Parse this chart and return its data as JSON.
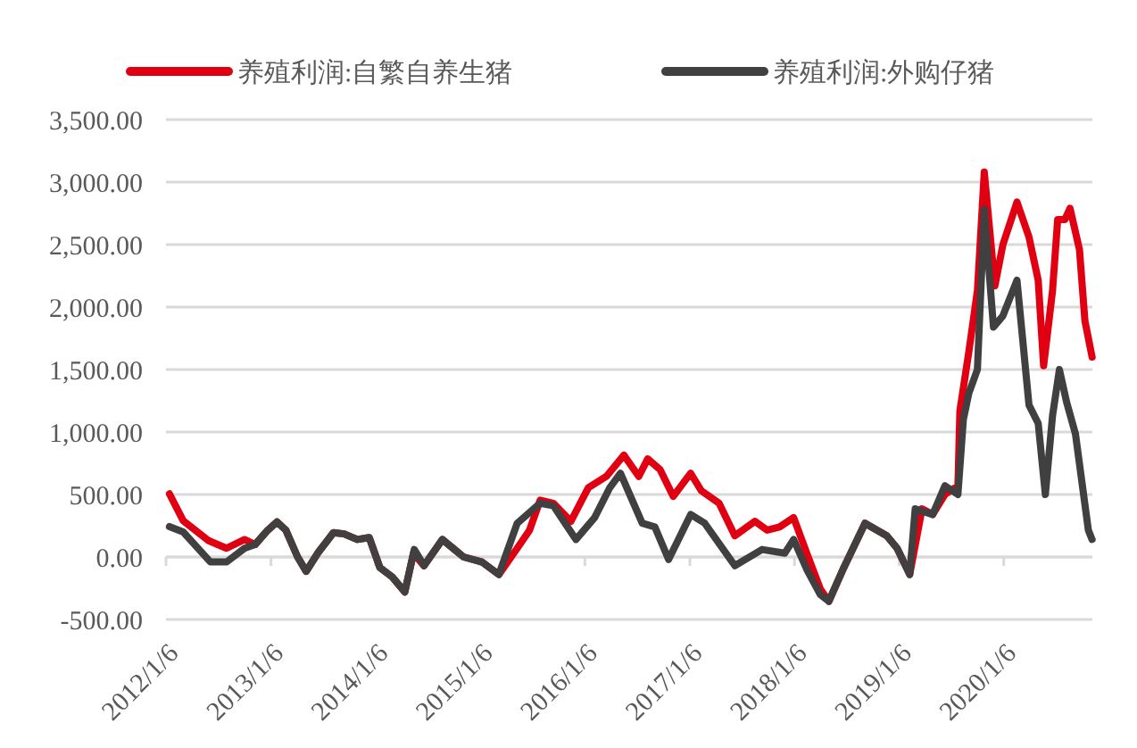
{
  "chart_data": {
    "type": "line",
    "xlim": [
      "2012-01-06",
      "2020-11-10"
    ],
    "xticks": [
      {
        "value": "2012-01-06",
        "label": "2012/1/6"
      },
      {
        "value": "2013-01-06",
        "label": "2013/1/6"
      },
      {
        "value": "2014-01-06",
        "label": "2014/1/6"
      },
      {
        "value": "2015-01-06",
        "label": "2015/1/6"
      },
      {
        "value": "2016-01-06",
        "label": "2016/1/6"
      },
      {
        "value": "2017-01-06",
        "label": "2017/1/6"
      },
      {
        "value": "2018-01-06",
        "label": "2018/1/6"
      },
      {
        "value": "2019-01-06",
        "label": "2019/1/6"
      },
      {
        "value": "2020-01-06",
        "label": "2020/1/6"
      }
    ],
    "ylim": [
      -500,
      3500
    ],
    "yticks": [
      {
        "value": -500,
        "label": "-500.00"
      },
      {
        "value": 0,
        "label": "0.00"
      },
      {
        "value": 500,
        "label": "500.00"
      },
      {
        "value": 1000,
        "label": "1,000.00"
      },
      {
        "value": 1500,
        "label": "1,500.00"
      },
      {
        "value": 2000,
        "label": "2,000.00"
      },
      {
        "value": 2500,
        "label": "2,500.00"
      },
      {
        "value": 3000,
        "label": "3,000.00"
      },
      {
        "value": 3500,
        "label": "3,500.00"
      }
    ],
    "grid": "y",
    "legend": "top",
    "series": [
      {
        "name": "养殖利润:自繁自养生猪",
        "color": "#e00012",
        "x": [
          "2012-01-18",
          "2012-03-06",
          "2012-06-03",
          "2012-08-04",
          "2012-10-06",
          "2012-11-12",
          "2012-12-26",
          "2013-01-27",
          "2013-02-27",
          "2013-04-09",
          "2013-05-09",
          "2013-06-18",
          "2013-08-12",
          "2013-09-18",
          "2013-11-03",
          "2013-12-15",
          "2014-01-21",
          "2014-03-05",
          "2014-04-18",
          "2014-05-18",
          "2014-06-24",
          "2014-08-27",
          "2014-11-09",
          "2015-01-12",
          "2015-03-12",
          "2015-05-15",
          "2015-06-27",
          "2015-08-03",
          "2015-09-18",
          "2015-11-18",
          "2016-01-18",
          "2016-03-21",
          "2016-05-21",
          "2016-07-12",
          "2016-08-12",
          "2016-09-24",
          "2016-11-09",
          "2017-01-09",
          "2017-02-15",
          "2017-04-18",
          "2017-06-12",
          "2017-08-21",
          "2017-10-03",
          "2017-11-15",
          "2018-01-03",
          "2018-02-18",
          "2018-04-06",
          "2018-05-06",
          "2018-06-27",
          "2018-09-09",
          "2018-11-24",
          "2018-12-30",
          "2019-02-12",
          "2019-03-27",
          "2019-05-03",
          "2019-06-15",
          "2019-07-30",
          "2019-08-06",
          "2019-09-06",
          "2019-10-06",
          "2019-10-30",
          "2019-12-06",
          "2020-01-03",
          "2020-02-21",
          "2020-04-03",
          "2020-05-05",
          "2020-05-24",
          "2020-06-24",
          "2020-07-12",
          "2020-08-06",
          "2020-08-24",
          "2020-09-26",
          "2020-10-15",
          "2020-11-09"
        ],
        "values": [
          505,
          290,
          130,
          70,
          140,
          100,
          215,
          280,
          215,
          0,
          -115,
          30,
          195,
          185,
          140,
          155,
          -85,
          -160,
          -280,
          30,
          -70,
          140,
          0,
          -40,
          -140,
          70,
          215,
          455,
          430,
          285,
          555,
          645,
          815,
          645,
          785,
          700,
          485,
          670,
          530,
          430,
          170,
          285,
          215,
          240,
          315,
          30,
          -255,
          -355,
          -85,
          270,
          170,
          70,
          -140,
          385,
          340,
          500,
          570,
          1170,
          1640,
          2130,
          3080,
          2170,
          2500,
          2840,
          2560,
          2215,
          1530,
          2130,
          2700,
          2700,
          2790,
          2460,
          1890,
          1600
        ]
      },
      {
        "name": "养殖利润:外购仔猪",
        "color": "#404040",
        "x": [
          "2012-01-18",
          "2012-03-06",
          "2012-06-09",
          "2012-08-04",
          "2012-10-06",
          "2012-11-12",
          "2012-12-26",
          "2013-01-27",
          "2013-02-27",
          "2013-04-09",
          "2013-05-09",
          "2013-06-18",
          "2013-08-12",
          "2013-09-18",
          "2013-11-03",
          "2013-12-15",
          "2014-01-21",
          "2014-03-05",
          "2014-04-18",
          "2014-05-21",
          "2014-06-24",
          "2014-08-27",
          "2014-11-09",
          "2015-01-12",
          "2015-03-12",
          "2015-05-15",
          "2015-08-03",
          "2015-09-18",
          "2015-12-06",
          "2016-02-09",
          "2016-04-02",
          "2016-05-09",
          "2016-07-24",
          "2016-09-06",
          "2016-10-24",
          "2017-01-09",
          "2017-02-27",
          "2017-06-12",
          "2017-09-15",
          "2017-12-03",
          "2018-01-03",
          "2018-02-18",
          "2018-04-06",
          "2018-05-06",
          "2018-06-27",
          "2018-09-09",
          "2018-11-24",
          "2018-12-30",
          "2019-02-12",
          "2019-03-03",
          "2019-05-03",
          "2019-06-15",
          "2019-07-30",
          "2019-08-18",
          "2019-09-06",
          "2019-10-06",
          "2019-10-30",
          "2019-12-01",
          "2020-01-03",
          "2020-02-21",
          "2020-04-03",
          "2020-05-05",
          "2020-05-30",
          "2020-06-24",
          "2020-07-18",
          "2020-08-12",
          "2020-09-12",
          "2020-10-27",
          "2020-11-09"
        ],
        "values": [
          243,
          200,
          -40,
          -40,
          70,
          100,
          215,
          280,
          215,
          0,
          -115,
          30,
          195,
          185,
          140,
          155,
          -85,
          -160,
          -280,
          60,
          -70,
          140,
          0,
          -40,
          -140,
          270,
          430,
          410,
          140,
          315,
          555,
          670,
          270,
          240,
          -20,
          340,
          270,
          -70,
          60,
          30,
          140,
          -100,
          -300,
          -355,
          -85,
          270,
          170,
          70,
          -140,
          385,
          340,
          570,
          500,
          1100,
          1310,
          1500,
          2780,
          1840,
          1930,
          2215,
          1215,
          1070,
          500,
          1130,
          1500,
          1240,
          985,
          215,
          140
        ]
      }
    ]
  }
}
